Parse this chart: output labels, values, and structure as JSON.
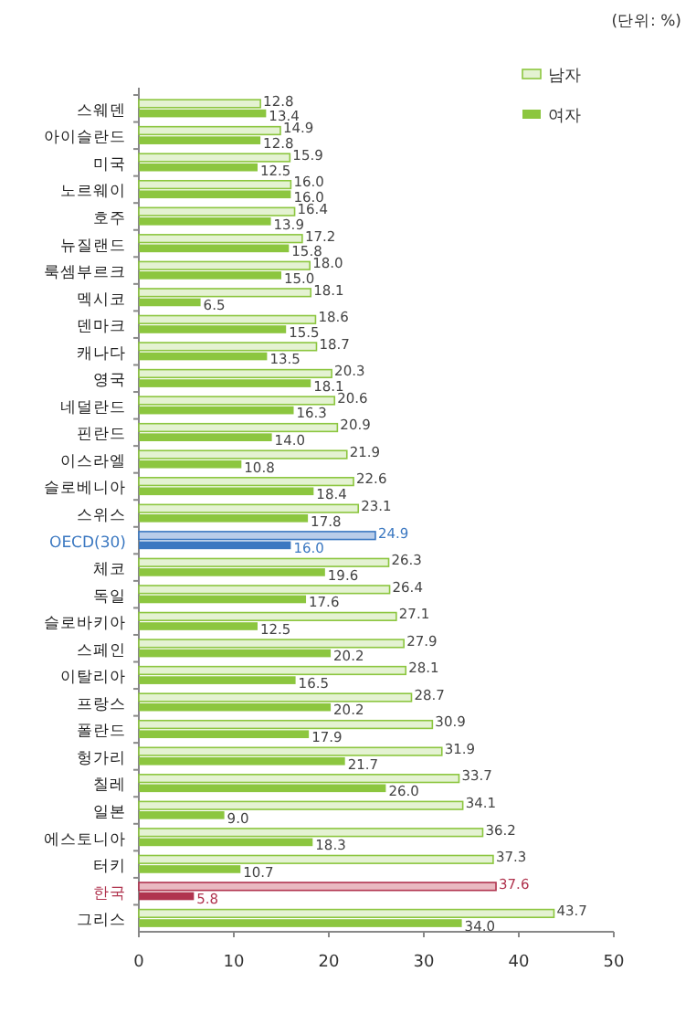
{
  "chart_data": {
    "type": "bar",
    "orientation": "horizontal",
    "annotations": [
      "(단위: %)"
    ],
    "categories": [
      "스웨덴",
      "아이슬란드",
      "미국",
      "노르웨이",
      "호주",
      "뉴질랜드",
      "룩셈부르크",
      "멕시코",
      "덴마크",
      "캐나다",
      "영국",
      "네덜란드",
      "핀란드",
      "이스라엘",
      "슬로베니아",
      "스위스",
      "OECD(30)",
      "체코",
      "독일",
      "슬로바키아",
      "스페인",
      "이탈리아",
      "프랑스",
      "폴란드",
      "헝가리",
      "칠레",
      "일본",
      "에스토니아",
      "터키",
      "한국",
      "그리스"
    ],
    "series": [
      {
        "name": "남자",
        "color": "#e4f2d2",
        "colors": [
          "#e4f2d2",
          "#e4f2d2",
          "#e4f2d2",
          "#e4f2d2",
          "#e4f2d2",
          "#e4f2d2",
          "#e4f2d2",
          "#e4f2d2",
          "#e4f2d2",
          "#e4f2d2",
          "#e4f2d2",
          "#e4f2d2",
          "#e4f2d2",
          "#e4f2d2",
          "#e4f2d2",
          "#e4f2d2",
          "#b9cde9",
          "#e4f2d2",
          "#e4f2d2",
          "#e4f2d2",
          "#e4f2d2",
          "#e4f2d2",
          "#e4f2d2",
          "#e4f2d2",
          "#e4f2d2",
          "#e4f2d2",
          "#e4f2d2",
          "#e4f2d2",
          "#e4f2d2",
          "#e9b9c1",
          "#e4f2d2"
        ],
        "values": [
          12.8,
          14.9,
          15.9,
          16.0,
          16.4,
          17.2,
          18.0,
          18.1,
          18.6,
          18.7,
          20.3,
          20.6,
          20.9,
          21.9,
          22.6,
          23.1,
          24.9,
          26.3,
          26.4,
          27.1,
          27.9,
          28.1,
          28.7,
          30.9,
          31.9,
          33.7,
          34.1,
          36.2,
          37.3,
          37.6,
          43.7
        ],
        "value_labels": [
          "12.8",
          "14.9",
          "15.9",
          "16.0",
          "16.4",
          "17.2",
          "18.0",
          "18.1",
          "18.6",
          "18.7",
          "20.3",
          "20.6",
          "20.9",
          "21.9",
          "22.6",
          "23.1",
          "24.9",
          "26.3",
          "26.4",
          "27.1",
          "27.9",
          "28.1",
          "28.7",
          "30.9",
          "31.9",
          "33.7",
          "34.1",
          "36.2",
          "37.3",
          "37.6",
          "43.7"
        ]
      },
      {
        "name": "여자",
        "color": "#8cc63f",
        "colors": [
          "#8cc63f",
          "#8cc63f",
          "#8cc63f",
          "#8cc63f",
          "#8cc63f",
          "#8cc63f",
          "#8cc63f",
          "#8cc63f",
          "#8cc63f",
          "#8cc63f",
          "#8cc63f",
          "#8cc63f",
          "#8cc63f",
          "#8cc63f",
          "#8cc63f",
          "#8cc63f",
          "#3b78c1",
          "#8cc63f",
          "#8cc63f",
          "#8cc63f",
          "#8cc63f",
          "#8cc63f",
          "#8cc63f",
          "#8cc63f",
          "#8cc63f",
          "#8cc63f",
          "#8cc63f",
          "#8cc63f",
          "#8cc63f",
          "#b0344f",
          "#8cc63f"
        ],
        "values": [
          13.4,
          12.8,
          12.5,
          16.0,
          13.9,
          15.8,
          15.0,
          6.5,
          15.5,
          13.5,
          18.1,
          16.3,
          14.0,
          10.8,
          18.4,
          17.8,
          16.0,
          19.6,
          17.6,
          12.5,
          20.2,
          16.5,
          20.2,
          17.9,
          21.7,
          26.0,
          9.0,
          18.3,
          10.7,
          5.8,
          34.0
        ],
        "value_labels": [
          "13.4",
          "12.8",
          "12.5",
          "16.0",
          "13.9",
          "15.8",
          "15.0",
          "6.5",
          "15.5",
          "13.5",
          "18.1",
          "16.3",
          "14.0",
          "10.8",
          "18.4",
          "17.8",
          "16.0",
          "19.6",
          "17.6",
          "12.5",
          "20.2",
          "16.5",
          "20.2",
          "17.9",
          "21.7",
          "26.0",
          "9.0",
          "18.3",
          "10.7",
          "5.8",
          "34.0"
        ]
      }
    ],
    "xlim": [
      0,
      50
    ],
    "xticks": [
      0,
      10,
      20,
      30,
      40,
      50
    ],
    "legend": "top right",
    "grid": false
  }
}
